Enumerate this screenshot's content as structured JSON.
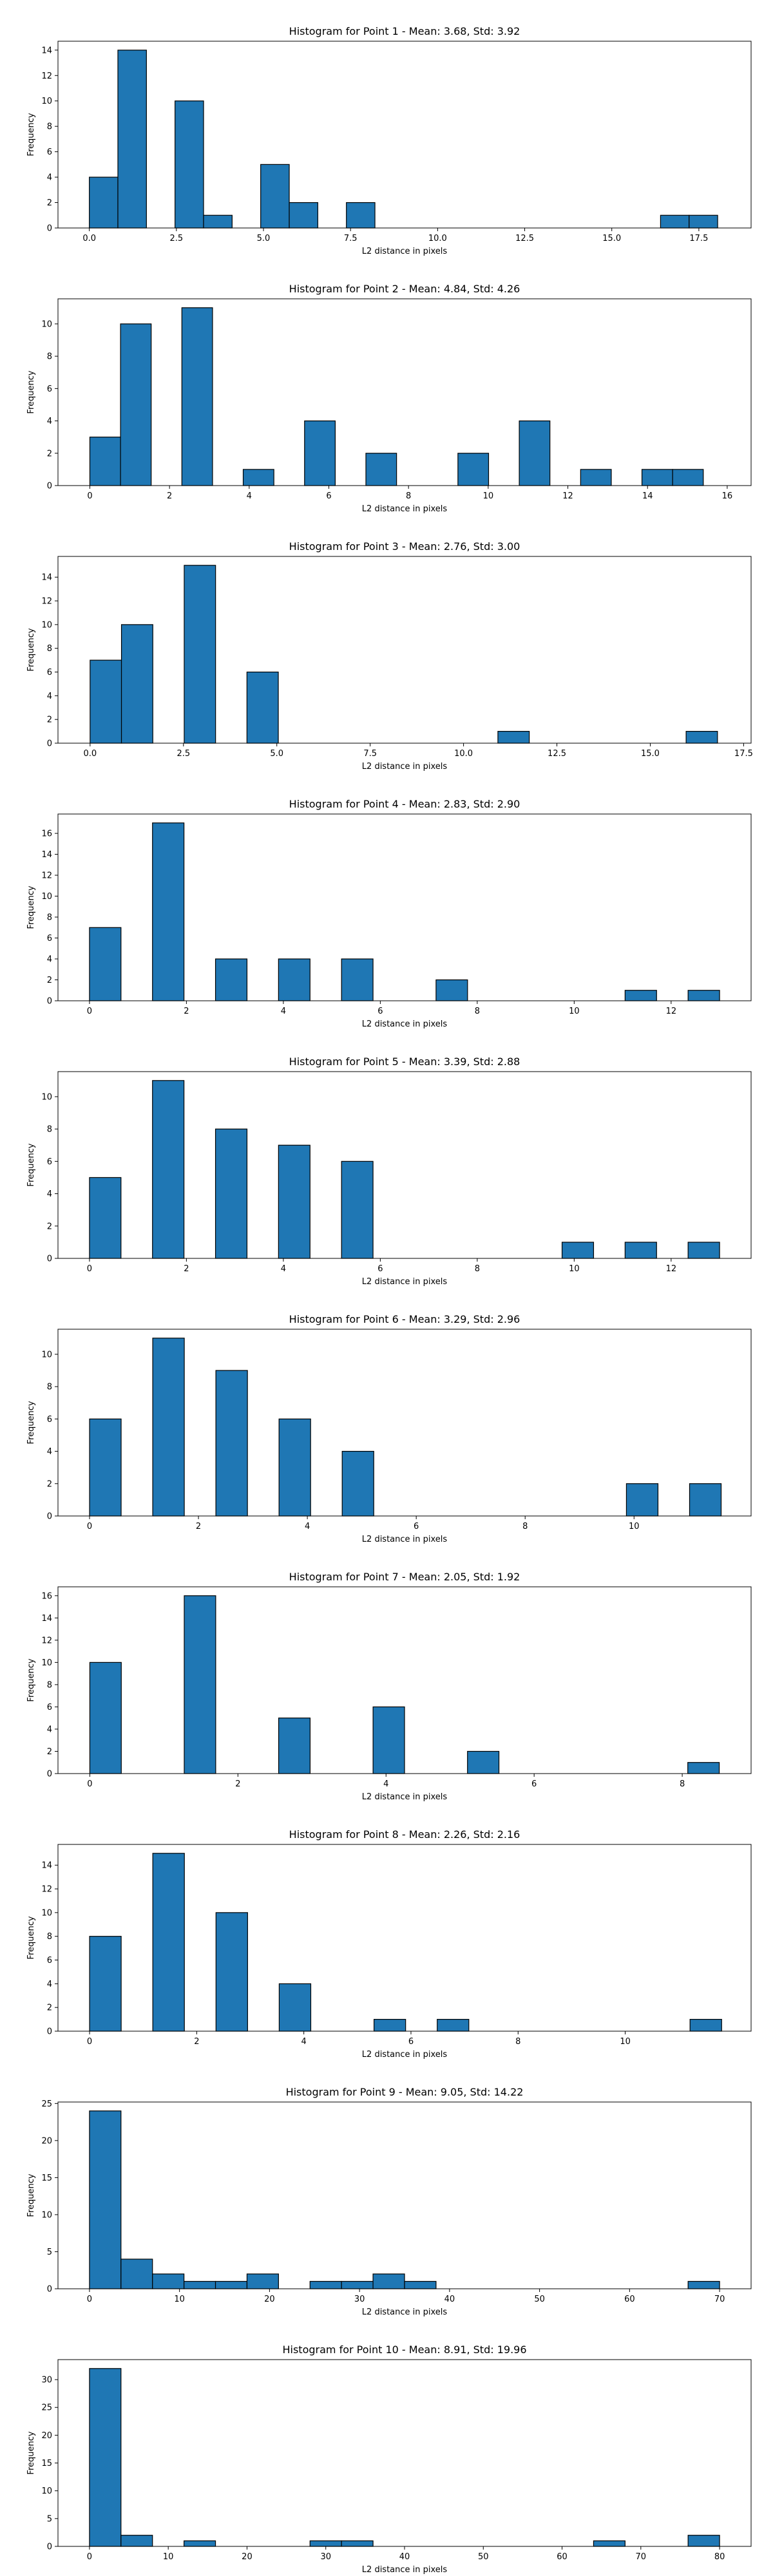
{
  "chart_data": [
    {
      "type": "histogram",
      "title": "Histogram for Point 1 - Mean: 3.68, Std: 3.92",
      "xlabel": "L2 distance in pixels",
      "ylabel": "Frequency",
      "xlim": [
        -0.9,
        19.0
      ],
      "ylim": [
        0,
        14.7
      ],
      "xticks": [
        0.0,
        2.5,
        5.0,
        7.5,
        10.0,
        12.5,
        15.0,
        17.5
      ],
      "xtick_labels": [
        "0.0",
        "2.5",
        "5.0",
        "7.5",
        "10.0",
        "12.5",
        "15.0",
        "17.5"
      ],
      "yticks": [
        0,
        2,
        4,
        6,
        8,
        10,
        12,
        14
      ],
      "ytick_labels": [
        "0",
        "2",
        "4",
        "6",
        "8",
        "10",
        "12",
        "14"
      ],
      "bin_edges": [
        0.0,
        0.82,
        1.64,
        2.46,
        3.28,
        4.1,
        4.92,
        5.74,
        6.56,
        7.38,
        8.2,
        9.02,
        9.84,
        10.66,
        11.48,
        12.3,
        13.12,
        13.94,
        14.76,
        15.58,
        16.4,
        17.22,
        18.04
      ],
      "counts": [
        4,
        14,
        0,
        10,
        1,
        0,
        5,
        2,
        0,
        2,
        0,
        0,
        0,
        0,
        0,
        0,
        0,
        0,
        0,
        0,
        1,
        1
      ]
    },
    {
      "type": "histogram",
      "title": "Histogram for Point 2 - Mean: 4.84, Std: 4.26",
      "xlabel": "L2 distance in pixels",
      "ylabel": "Frequency",
      "xlim": [
        -0.8,
        16.6
      ],
      "ylim": [
        0,
        11.55
      ],
      "xticks": [
        0,
        2,
        4,
        6,
        8,
        10,
        12,
        14,
        16
      ],
      "xtick_labels": [
        "0",
        "2",
        "4",
        "6",
        "8",
        "10",
        "12",
        "14",
        "16"
      ],
      "yticks": [
        0,
        2,
        4,
        6,
        8,
        10
      ],
      "ytick_labels": [
        "0",
        "2",
        "4",
        "6",
        "8",
        "10"
      ],
      "bin_edges": [
        0.0,
        0.77,
        1.54,
        2.31,
        3.08,
        3.85,
        4.62,
        5.39,
        6.16,
        6.93,
        7.7,
        8.47,
        9.24,
        10.01,
        10.78,
        11.55,
        12.32,
        13.09,
        13.86,
        14.63,
        15.4
      ],
      "counts": [
        3,
        10,
        0,
        11,
        0,
        1,
        0,
        4,
        0,
        2,
        0,
        0,
        2,
        0,
        4,
        0,
        1,
        0,
        1,
        1
      ]
    },
    {
      "type": "histogram",
      "title": "Histogram for Point 3 - Mean: 2.76, Std: 3.00",
      "xlabel": "L2 distance in pixels",
      "ylabel": "Frequency",
      "xlim": [
        -0.86,
        17.7
      ],
      "ylim": [
        0,
        15.75
      ],
      "xticks": [
        0.0,
        2.5,
        5.0,
        7.5,
        10.0,
        12.5,
        15.0,
        17.5
      ],
      "xtick_labels": [
        "0.0",
        "2.5",
        "5.0",
        "7.5",
        "10.0",
        "12.5",
        "15.0",
        "17.5"
      ],
      "yticks": [
        0,
        2,
        4,
        6,
        8,
        10,
        12,
        14
      ],
      "ytick_labels": [
        "0",
        "2",
        "4",
        "6",
        "8",
        "10",
        "12",
        "14"
      ],
      "bin_edges": [
        0.0,
        0.84,
        1.68,
        2.52,
        3.36,
        4.2,
        5.04,
        5.88,
        6.72,
        7.56,
        8.4,
        9.24,
        10.08,
        10.92,
        11.76,
        12.6,
        13.44,
        14.28,
        15.12,
        15.96,
        16.8
      ],
      "counts": [
        7,
        10,
        0,
        15,
        0,
        6,
        0,
        0,
        0,
        0,
        0,
        0,
        0,
        1,
        0,
        0,
        0,
        0,
        0,
        1
      ]
    },
    {
      "type": "histogram",
      "title": "Histogram for Point 4 - Mean: 2.83, Std: 2.90",
      "xlabel": "L2 distance in pixels",
      "ylabel": "Frequency",
      "xlim": [
        -0.65,
        13.65
      ],
      "ylim": [
        0,
        17.85
      ],
      "xticks": [
        0,
        2,
        4,
        6,
        8,
        10,
        12
      ],
      "xtick_labels": [
        "0",
        "2",
        "4",
        "6",
        "8",
        "10",
        "12"
      ],
      "yticks": [
        0,
        2,
        4,
        6,
        8,
        10,
        12,
        14,
        16
      ],
      "ytick_labels": [
        "0",
        "2",
        "4",
        "6",
        "8",
        "10",
        "12",
        "14",
        "16"
      ],
      "bin_edges": [
        0.0,
        0.65,
        1.3,
        1.95,
        2.6,
        3.25,
        3.9,
        4.55,
        5.2,
        5.85,
        6.5,
        7.15,
        7.8,
        8.45,
        9.1,
        9.75,
        10.4,
        11.05,
        11.7,
        12.35,
        13.0
      ],
      "counts": [
        7,
        0,
        17,
        0,
        4,
        0,
        4,
        0,
        4,
        0,
        0,
        2,
        0,
        0,
        0,
        0,
        0,
        1,
        0,
        1
      ]
    },
    {
      "type": "histogram",
      "title": "Histogram for Point 5 - Mean: 3.39, Std: 2.88",
      "xlabel": "L2 distance in pixels",
      "ylabel": "Frequency",
      "xlim": [
        -0.65,
        13.65
      ],
      "ylim": [
        0,
        11.55
      ],
      "xticks": [
        0,
        2,
        4,
        6,
        8,
        10,
        12
      ],
      "xtick_labels": [
        "0",
        "2",
        "4",
        "6",
        "8",
        "10",
        "12"
      ],
      "yticks": [
        0,
        2,
        4,
        6,
        8,
        10
      ],
      "ytick_labels": [
        "0",
        "2",
        "4",
        "6",
        "8",
        "10"
      ],
      "bin_edges": [
        0.0,
        0.65,
        1.3,
        1.95,
        2.6,
        3.25,
        3.9,
        4.55,
        5.2,
        5.85,
        6.5,
        7.15,
        7.8,
        8.45,
        9.1,
        9.75,
        10.4,
        11.05,
        11.7,
        12.35,
        13.0
      ],
      "counts": [
        5,
        0,
        11,
        0,
        8,
        0,
        7,
        0,
        6,
        0,
        0,
        0,
        0,
        0,
        0,
        1,
        0,
        1,
        0,
        1
      ]
    },
    {
      "type": "histogram",
      "title": "Histogram for Point 6 - Mean: 3.29, Std: 2.96",
      "xlabel": "L2 distance in pixels",
      "ylabel": "Frequency",
      "xlim": [
        -0.58,
        12.15
      ],
      "ylim": [
        0,
        11.55
      ],
      "xticks": [
        0,
        2,
        4,
        6,
        8,
        10
      ],
      "xtick_labels": [
        "0",
        "2",
        "4",
        "6",
        "8",
        "10"
      ],
      "yticks": [
        0,
        2,
        4,
        6,
        8,
        10
      ],
      "ytick_labels": [
        "0",
        "2",
        "4",
        "6",
        "8",
        "10"
      ],
      "bin_edges": [
        0.0,
        0.58,
        1.16,
        1.74,
        2.32,
        2.9,
        3.48,
        4.06,
        4.64,
        5.22,
        5.8,
        6.38,
        6.96,
        7.54,
        8.12,
        8.7,
        9.28,
        9.86,
        10.44,
        11.02,
        11.6
      ],
      "counts": [
        6,
        0,
        11,
        0,
        9,
        0,
        6,
        0,
        4,
        0,
        0,
        0,
        0,
        0,
        0,
        0,
        0,
        2,
        0,
        2
      ]
    },
    {
      "type": "histogram",
      "title": "Histogram for Point 7 - Mean: 2.05, Std: 1.92",
      "xlabel": "L2 distance in pixels",
      "ylabel": "Frequency",
      "xlim": [
        -0.43,
        8.93
      ],
      "ylim": [
        0,
        16.8
      ],
      "xticks": [
        0,
        2,
        4,
        6,
        8
      ],
      "xtick_labels": [
        "0",
        "2",
        "4",
        "6",
        "8"
      ],
      "yticks": [
        0,
        2,
        4,
        6,
        8,
        10,
        12,
        14,
        16
      ],
      "ytick_labels": [
        "0",
        "2",
        "4",
        "6",
        "8",
        "10",
        "12",
        "14",
        "16"
      ],
      "bin_edges": [
        0.0,
        0.425,
        0.85,
        1.275,
        1.7,
        2.125,
        2.55,
        2.975,
        3.4,
        3.825,
        4.25,
        4.675,
        5.1,
        5.525,
        5.95,
        6.375,
        6.8,
        7.225,
        7.65,
        8.075,
        8.5
      ],
      "counts": [
        10,
        0,
        0,
        16,
        0,
        0,
        5,
        0,
        0,
        6,
        0,
        0,
        2,
        0,
        0,
        0,
        0,
        0,
        0,
        1
      ]
    },
    {
      "type": "histogram",
      "title": "Histogram for Point 8 - Mean: 2.26, Std: 2.16",
      "xlabel": "L2 distance in pixels",
      "ylabel": "Frequency",
      "xlim": [
        -0.59,
        12.35
      ],
      "ylim": [
        0,
        15.75
      ],
      "xticks": [
        0,
        2,
        4,
        6,
        8,
        10
      ],
      "xtick_labels": [
        "0",
        "2",
        "4",
        "6",
        "8",
        "10"
      ],
      "yticks": [
        0,
        2,
        4,
        6,
        8,
        10,
        12,
        14
      ],
      "ytick_labels": [
        "0",
        "2",
        "4",
        "6",
        "8",
        "10",
        "12",
        "14"
      ],
      "bin_edges": [
        0.0,
        0.59,
        1.18,
        1.77,
        2.36,
        2.95,
        3.54,
        4.13,
        4.72,
        5.31,
        5.9,
        6.49,
        7.08,
        7.67,
        8.26,
        8.85,
        9.44,
        10.03,
        10.62,
        11.21,
        11.8
      ],
      "counts": [
        8,
        0,
        15,
        0,
        10,
        0,
        4,
        0,
        0,
        1,
        0,
        1,
        0,
        0,
        0,
        0,
        0,
        0,
        0,
        1
      ]
    },
    {
      "type": "histogram",
      "title": "Histogram for Point 9 - Mean: 9.05, Std: 14.22",
      "xlabel": "L2 distance in pixels",
      "ylabel": "Frequency",
      "xlim": [
        -3.5,
        73.5
      ],
      "ylim": [
        0,
        25.2
      ],
      "xticks": [
        0,
        10,
        20,
        30,
        40,
        50,
        60,
        70
      ],
      "xtick_labels": [
        "0",
        "10",
        "20",
        "30",
        "40",
        "50",
        "60",
        "70"
      ],
      "yticks": [
        0,
        5,
        10,
        15,
        20,
        25
      ],
      "ytick_labels": [
        "0",
        "5",
        "10",
        "15",
        "20",
        "25"
      ],
      "bin_edges": [
        0.0,
        3.5,
        7.0,
        10.5,
        14.0,
        17.5,
        21.0,
        24.5,
        28.0,
        31.5,
        35.0,
        38.5,
        42.0,
        45.5,
        49.0,
        52.5,
        56.0,
        59.5,
        63.0,
        66.5,
        70.0
      ],
      "counts": [
        24,
        4,
        2,
        1,
        1,
        2,
        0,
        1,
        1,
        2,
        1,
        0,
        0,
        0,
        0,
        0,
        0,
        0,
        0,
        1
      ]
    },
    {
      "type": "histogram",
      "title": "Histogram for Point 10 - Mean: 8.91, Std: 19.96",
      "xlabel": "L2 distance in pixels",
      "ylabel": "Frequency",
      "xlim": [
        -4.0,
        84.0
      ],
      "ylim": [
        0,
        33.6
      ],
      "xticks": [
        0,
        10,
        20,
        30,
        40,
        50,
        60,
        70,
        80
      ],
      "xtick_labels": [
        "0",
        "10",
        "20",
        "30",
        "40",
        "50",
        "60",
        "70",
        "80"
      ],
      "yticks": [
        0,
        5,
        10,
        15,
        20,
        25,
        30
      ],
      "ytick_labels": [
        "0",
        "5",
        "10",
        "15",
        "20",
        "25",
        "30"
      ],
      "bin_edges": [
        0.0,
        4.0,
        8.0,
        12.0,
        16.0,
        20.0,
        24.0,
        28.0,
        32.0,
        36.0,
        40.0,
        44.0,
        48.0,
        52.0,
        56.0,
        60.0,
        64.0,
        68.0,
        72.0,
        76.0,
        80.0
      ],
      "counts": [
        32,
        2,
        0,
        1,
        0,
        0,
        0,
        1,
        1,
        0,
        0,
        0,
        0,
        0,
        0,
        0,
        1,
        0,
        0,
        2
      ]
    }
  ]
}
